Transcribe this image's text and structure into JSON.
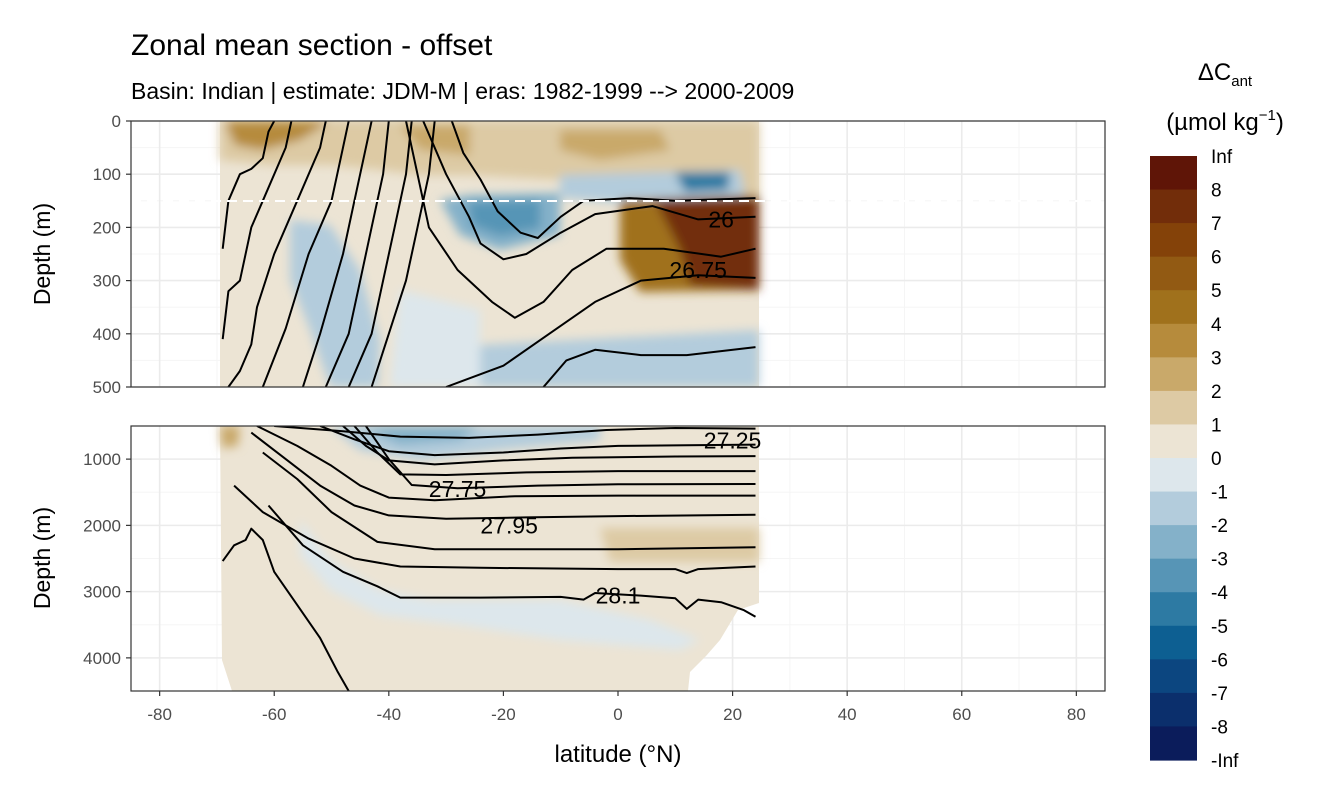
{
  "chart_data": {
    "type": "heatmap",
    "title": "Zonal mean section - offset",
    "subtitle": "Basin: Indian | estimate: JDM-M | eras: 1982-1999 --> 2000-2009",
    "xlabel": "latitude (°N)",
    "ylabel": "Depth (m)",
    "xlim": [
      -85,
      85
    ],
    "x_ticks": [
      -80,
      -60,
      -40,
      -20,
      0,
      20,
      40,
      60,
      80
    ],
    "data_lat_range": [
      -70,
      25
    ],
    "mixed_layer_reference_depth": 150,
    "panels": [
      {
        "name": "upper",
        "ylim": [
          0,
          500
        ],
        "y_ticks": [
          0,
          100,
          200,
          300,
          400,
          500
        ],
        "contour_labels": [
          {
            "text": "26",
            "lat": 18,
            "depth": 185
          },
          {
            "text": "26.75",
            "lat": 14,
            "depth": 280
          }
        ],
        "isopycnals": [
          [
            [
              -69,
              240
            ],
            [
              -68,
              150
            ],
            [
              -66,
              100
            ],
            [
              -64,
              90
            ],
            [
              -62,
              70
            ],
            [
              -61,
              20
            ],
            [
              -60,
              0
            ]
          ],
          [
            [
              -69,
              410
            ],
            [
              -68,
              320
            ],
            [
              -66,
              300
            ],
            [
              -64,
              200
            ],
            [
              -62,
              150
            ],
            [
              -58,
              50
            ],
            [
              -57,
              0
            ]
          ],
          [
            [
              -68,
              500
            ],
            [
              -66,
              470
            ],
            [
              -64,
              420
            ],
            [
              -63,
              350
            ],
            [
              -60,
              250
            ],
            [
              -56,
              150
            ],
            [
              -52,
              50
            ],
            [
              -51,
              0
            ]
          ],
          [
            [
              -62,
              500
            ],
            [
              -58,
              390
            ],
            [
              -54,
              250
            ],
            [
              -50,
              150
            ],
            [
              -48,
              50
            ],
            [
              -47,
              0
            ]
          ],
          [
            [
              -55,
              500
            ],
            [
              -52,
              400
            ],
            [
              -48,
              250
            ],
            [
              -46,
              150
            ],
            [
              -44,
              50
            ],
            [
              -43,
              0
            ]
          ],
          [
            [
              -51,
              500
            ],
            [
              -47,
              400
            ],
            [
              -45,
              300
            ],
            [
              -43,
              200
            ],
            [
              -41,
              100
            ],
            [
              -40,
              0
            ]
          ],
          [
            [
              -47,
              500
            ],
            [
              -43,
              400
            ],
            [
              -41,
              300
            ],
            [
              -39,
              200
            ],
            [
              -37,
              100
            ],
            [
              -36,
              0
            ]
          ],
          [
            [
              -43,
              500
            ],
            [
              -40,
              400
            ],
            [
              -37,
              300
            ],
            [
              -35,
              200
            ],
            [
              -33,
              100
            ],
            [
              -32,
              0
            ]
          ],
          [
            [
              -29,
              0
            ],
            [
              -27,
              60
            ],
            [
              -24,
              110
            ],
            [
              -21,
              170
            ],
            [
              -17,
              210
            ],
            [
              -14,
              220
            ],
            [
              -10,
              180
            ],
            [
              -6,
              150
            ],
            [
              2,
              145
            ],
            [
              10,
              150
            ],
            [
              24,
              145
            ]
          ],
          [
            [
              -34,
              0
            ],
            [
              -30,
              100
            ],
            [
              -26,
              180
            ],
            [
              -24,
              230
            ],
            [
              -20,
              260
            ],
            [
              -16,
              250
            ],
            [
              -10,
              210
            ],
            [
              -4,
              175
            ],
            [
              6,
              160
            ],
            [
              14,
              185
            ],
            [
              24,
              180
            ]
          ],
          [
            [
              -37,
              0
            ],
            [
              -35,
              100
            ],
            [
              -33,
              200
            ],
            [
              -28,
              280
            ],
            [
              -22,
              340
            ],
            [
              -18,
              370
            ],
            [
              -13,
              340
            ],
            [
              -8,
              280
            ],
            [
              -2,
              240
            ],
            [
              8,
              240
            ],
            [
              18,
              255
            ],
            [
              24,
              240
            ]
          ],
          [
            [
              -30,
              500
            ],
            [
              -20,
              460
            ],
            [
              -12,
              400
            ],
            [
              -4,
              340
            ],
            [
              4,
              300
            ],
            [
              14,
              290
            ],
            [
              24,
              295
            ]
          ],
          [
            [
              -13,
              500
            ],
            [
              -9,
              450
            ],
            [
              -4,
              430
            ],
            [
              4,
              440
            ],
            [
              12,
              440
            ],
            [
              24,
              425
            ]
          ]
        ]
      },
      {
        "name": "lower",
        "ylim": [
          500,
          4500
        ],
        "y_ticks": [
          1000,
          2000,
          3000,
          4000
        ],
        "contour_labels": [
          {
            "text": "27.25",
            "lat": 20,
            "depth": 720
          },
          {
            "text": "27.75",
            "lat": -28,
            "depth": 1450
          },
          {
            "text": "27.95",
            "lat": -19,
            "depth": 2000
          },
          {
            "text": "28.1",
            "lat": 0,
            "depth": 3060
          }
        ],
        "isopycnals": [
          [
            [
              -60,
              500
            ],
            [
              -48,
              580
            ],
            [
              -38,
              660
            ],
            [
              -26,
              680
            ],
            [
              -14,
              630
            ],
            [
              -2,
              560
            ],
            [
              10,
              530
            ],
            [
              24,
              540
            ]
          ],
          [
            [
              -52,
              500
            ],
            [
              -46,
              700
            ],
            [
              -40,
              880
            ],
            [
              -32,
              940
            ],
            [
              -20,
              900
            ],
            [
              -10,
              840
            ],
            [
              0,
              800
            ],
            [
              12,
              790
            ],
            [
              24,
              780
            ]
          ],
          [
            [
              -48,
              500
            ],
            [
              -44,
              800
            ],
            [
              -40,
              1020
            ],
            [
              -32,
              1080
            ],
            [
              -20,
              1020
            ],
            [
              -8,
              980
            ],
            [
              10,
              960
            ],
            [
              24,
              955
            ]
          ],
          [
            [
              -46,
              500
            ],
            [
              -42,
              900
            ],
            [
              -38,
              1230
            ],
            [
              -30,
              1240
            ],
            [
              -16,
              1200
            ],
            [
              0,
              1180
            ],
            [
              24,
              1180
            ]
          ],
          [
            [
              -44,
              500
            ],
            [
              -40,
              1000
            ],
            [
              -36,
              1390
            ],
            [
              -28,
              1440
            ],
            [
              -14,
              1400
            ],
            [
              0,
              1380
            ],
            [
              24,
              1375
            ]
          ],
          [
            [
              -63,
              500
            ],
            [
              -56,
              800
            ],
            [
              -50,
              1100
            ],
            [
              -45,
              1400
            ],
            [
              -40,
              1580
            ],
            [
              -32,
              1620
            ],
            [
              -18,
              1560
            ],
            [
              0,
              1550
            ],
            [
              24,
              1550
            ]
          ],
          [
            [
              -64,
              600
            ],
            [
              -58,
              1000
            ],
            [
              -52,
              1400
            ],
            [
              -46,
              1700
            ],
            [
              -40,
              1850
            ],
            [
              -30,
              1900
            ],
            [
              -16,
              1880
            ],
            [
              0,
              1860
            ],
            [
              24,
              1840
            ]
          ],
          [
            [
              -62,
              900
            ],
            [
              -56,
              1300
            ],
            [
              -50,
              1800
            ],
            [
              -42,
              2250
            ],
            [
              -32,
              2360
            ],
            [
              -18,
              2360
            ],
            [
              0,
              2360
            ],
            [
              24,
              2330
            ]
          ],
          [
            [
              -67,
              1400
            ],
            [
              -62,
              1800
            ],
            [
              -54,
              2200
            ],
            [
              -46,
              2500
            ],
            [
              -38,
              2620
            ],
            [
              -24,
              2640
            ],
            [
              0,
              2660
            ],
            [
              10,
              2660
            ],
            [
              12,
              2720
            ],
            [
              14,
              2660
            ],
            [
              24,
              2620
            ]
          ],
          [
            [
              -61,
              1700
            ],
            [
              -55,
              2300
            ],
            [
              -48,
              2700
            ],
            [
              -42,
              2920
            ],
            [
              -38,
              3090
            ],
            [
              -24,
              3090
            ],
            [
              -10,
              3080
            ],
            [
              -6,
              3120
            ],
            [
              -4,
              3020
            ],
            [
              4,
              3060
            ],
            [
              10,
              3100
            ],
            [
              12,
              3260
            ],
            [
              14,
              3120
            ],
            [
              18,
              3160
            ],
            [
              22,
              3280
            ],
            [
              24,
              3380
            ]
          ],
          [
            [
              -69,
              2540
            ],
            [
              -67,
              2300
            ],
            [
              -65,
              2220
            ],
            [
              -64,
              2050
            ],
            [
              -62,
              2220
            ],
            [
              -60,
              2700
            ],
            [
              -56,
              3200
            ],
            [
              -52,
              3700
            ],
            [
              -49,
              4200
            ],
            [
              -47,
              4500
            ]
          ]
        ]
      }
    ],
    "legend": {
      "title": "ΔC",
      "title_subscript": "ant",
      "unit": "(µmol kg",
      "unit_superscript": "−1",
      "unit_close": ")",
      "labels": [
        "Inf",
        "8",
        "7",
        "6",
        "5",
        "4",
        "3",
        "2",
        "1",
        "0",
        "-1",
        "-2",
        "-3",
        "-4",
        "-5",
        "-6",
        "-7",
        "-8",
        "-Inf"
      ],
      "colors": [
        "#5f1507",
        "#722d0a",
        "#844209",
        "#925a13",
        "#a0711c",
        "#b68b3c",
        "#c9a96a",
        "#ddcaa4",
        "#ece4d4",
        "#dde7ec",
        "#b3ccdc",
        "#84b1c9",
        "#5795b6",
        "#2d7aa3",
        "#0d5f92",
        "#0c4680",
        "#0b2f6c",
        "#0b1c5b"
      ]
    },
    "colors": {
      "panel_bg": "#ffffff",
      "grid_major": "#ebebeb",
      "grid_minor": "#f5f5f5",
      "contour": "#000000",
      "mld_line": "#ffffff"
    }
  }
}
